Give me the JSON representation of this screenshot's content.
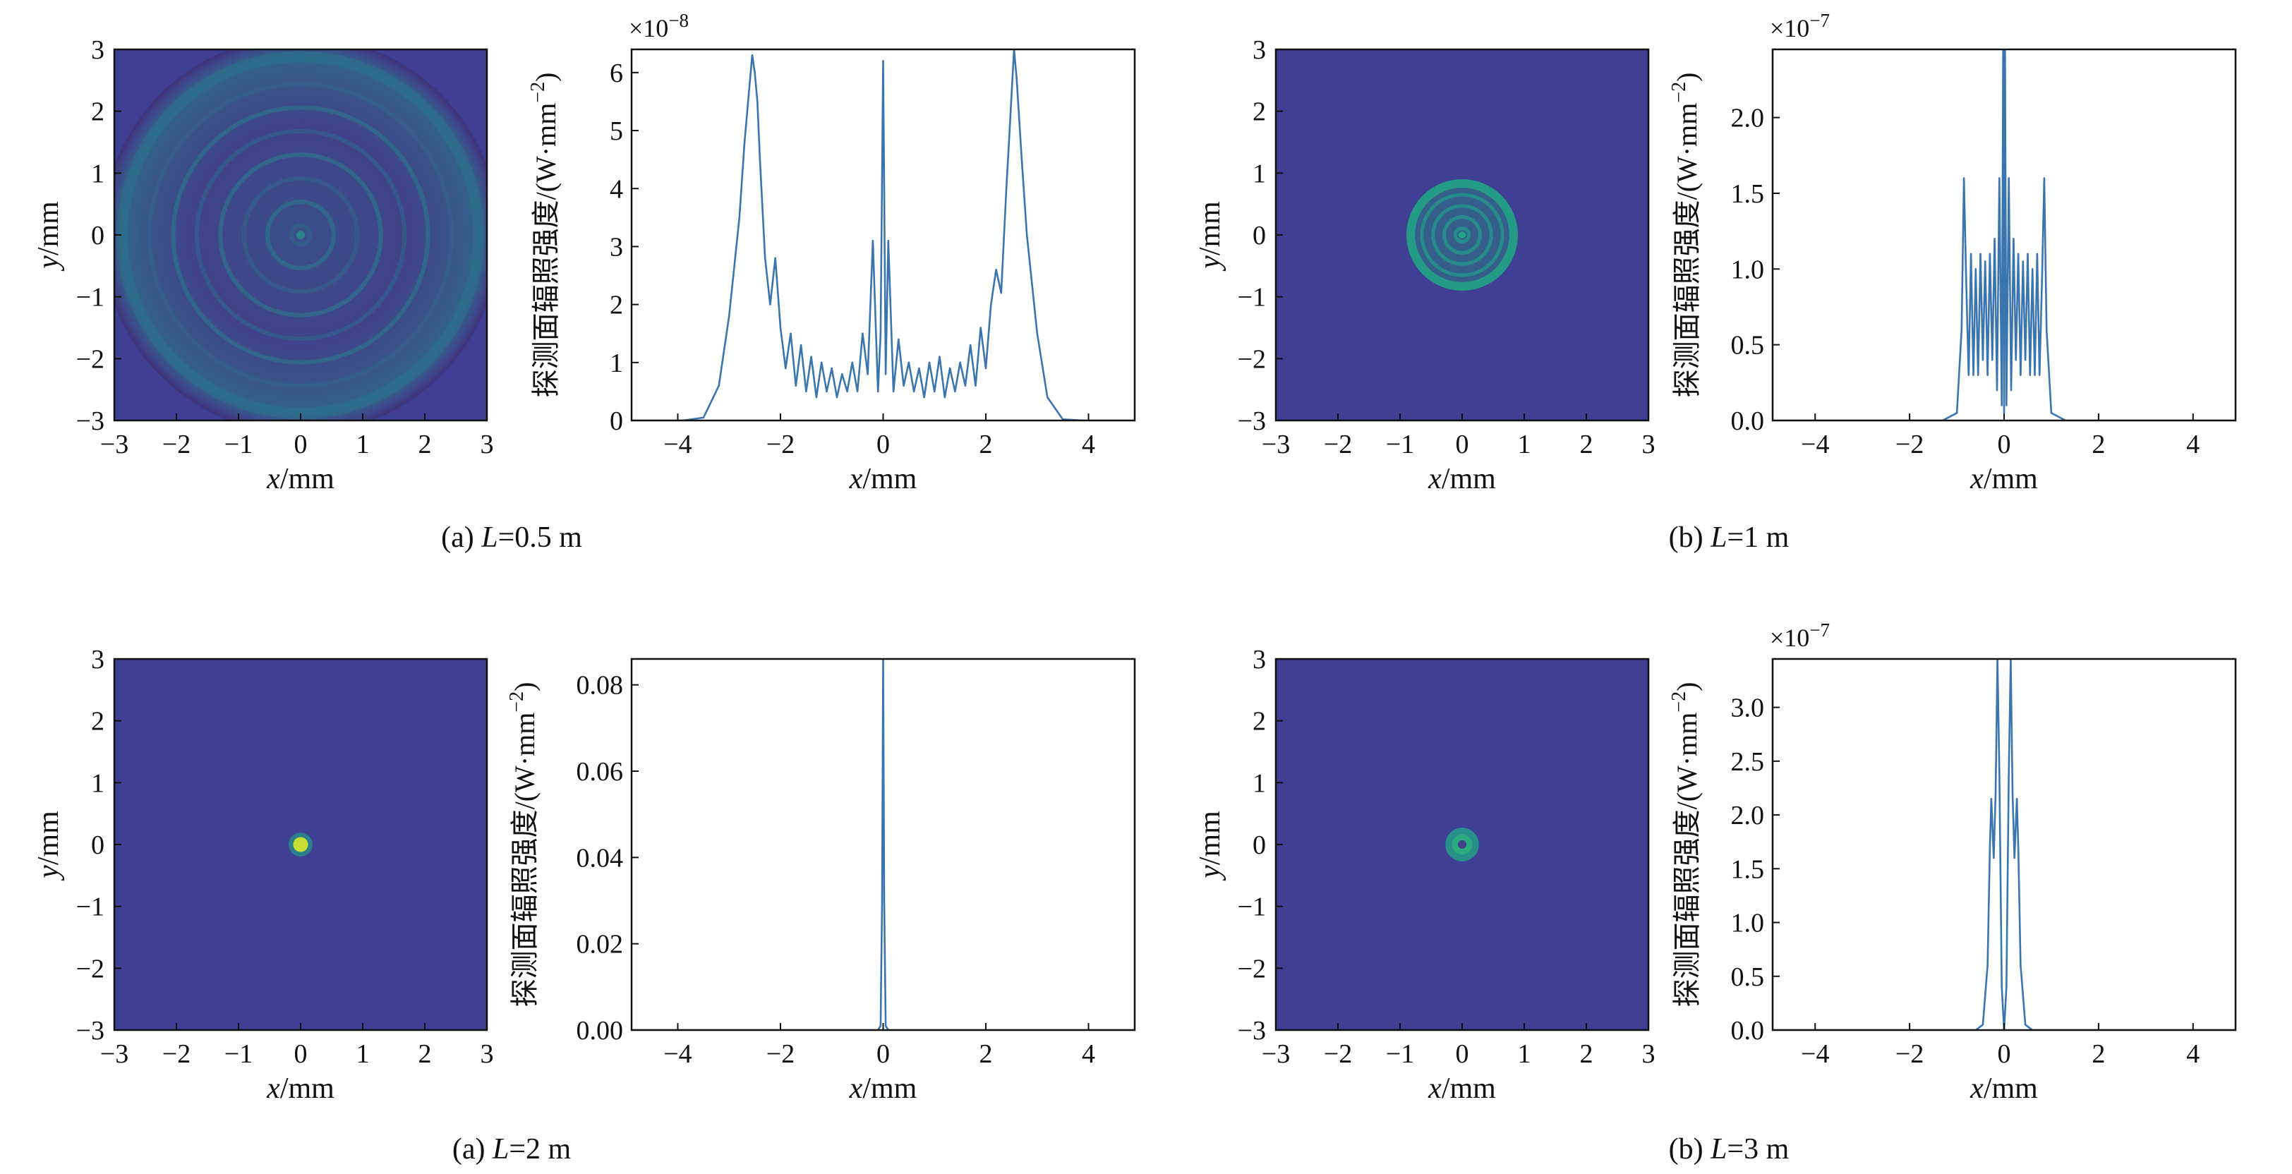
{
  "colors": {
    "line": "#3b75af",
    "map_background": "#3f3f93",
    "map_ring": "#3378b5",
    "map_peak": "#b8e05a",
    "frame": "#111111"
  },
  "chart_data": [
    {
      "type": "heatmap",
      "panel": "a-top-map",
      "xlabel_var": "x",
      "xlabel_unit": "/mm",
      "ylabel_var": "y",
      "ylabel_unit": "/mm",
      "xlim": [
        -3,
        3
      ],
      "ylim": [
        -3,
        3
      ],
      "xticks": [
        "−3",
        "−2",
        "−1",
        "0",
        "1",
        "2",
        "3"
      ],
      "yticks": [
        "−3",
        "−2",
        "−1",
        "0",
        "1",
        "2",
        "3"
      ],
      "colormap": "viridis",
      "pattern": {
        "kind": "rings",
        "outer_radius": 3.2,
        "ring_spacing": 0.38,
        "peak": 0.45
      },
      "caption": {
        "prefix": "(a) ",
        "var": "L",
        "value": "=0.5 m"
      }
    },
    {
      "type": "line",
      "panel": "a-top-profile",
      "ylabel": "探测面辐照强度/(W·mm",
      "ylabel_sup": "−2",
      "ylabel_close": ")",
      "xlabel_var": "x",
      "xlabel_unit": "/mm",
      "multiplier": "×10",
      "multiplier_exp": "−8",
      "xlim": [
        -4.9,
        4.9
      ],
      "ylim": [
        0,
        6.4
      ],
      "xticks": [
        "−4",
        "−2",
        "0",
        "2",
        "4"
      ],
      "yticks": [
        "0",
        "1",
        "2",
        "3",
        "4",
        "5",
        "6"
      ],
      "x": [
        -4.9,
        -4.5,
        -4.2,
        -3.9,
        -3.5,
        -3.2,
        -3.0,
        -2.8,
        -2.7,
        -2.6,
        -2.55,
        -2.5,
        -2.45,
        -2.4,
        -2.3,
        -2.2,
        -2.1,
        -2.0,
        -1.9,
        -1.8,
        -1.7,
        -1.6,
        -1.5,
        -1.4,
        -1.3,
        -1.2,
        -1.1,
        -1.0,
        -0.9,
        -0.8,
        -0.7,
        -0.6,
        -0.5,
        -0.4,
        -0.3,
        -0.2,
        -0.1,
        -0.05,
        0,
        0.05,
        0.1,
        0.2,
        0.3,
        0.4,
        0.5,
        0.6,
        0.7,
        0.8,
        0.9,
        1.0,
        1.1,
        1.2,
        1.3,
        1.4,
        1.5,
        1.6,
        1.7,
        1.8,
        1.9,
        2.0,
        2.1,
        2.2,
        2.3,
        2.4,
        2.45,
        2.5,
        2.55,
        2.6,
        2.7,
        2.8,
        3.0,
        3.2,
        3.5,
        3.9,
        4.2,
        4.5,
        4.9
      ],
      "values": [
        0,
        0,
        0,
        0,
        0.05,
        0.6,
        1.8,
        3.5,
        4.8,
        5.8,
        6.3,
        6.0,
        5.5,
        4.5,
        2.8,
        2.0,
        2.8,
        1.6,
        0.9,
        1.5,
        0.6,
        1.3,
        0.5,
        1.1,
        0.4,
        1.0,
        0.5,
        0.9,
        0.4,
        0.8,
        0.5,
        1.0,
        0.5,
        1.5,
        0.8,
        3.1,
        0.5,
        1.5,
        6.2,
        0.8,
        3.1,
        0.5,
        1.4,
        0.6,
        1.0,
        0.5,
        0.9,
        0.4,
        1.0,
        0.5,
        1.1,
        0.4,
        0.9,
        0.5,
        1.0,
        0.6,
        1.3,
        0.6,
        1.6,
        0.9,
        2.0,
        2.6,
        2.2,
        4.0,
        4.8,
        5.6,
        6.4,
        5.9,
        4.5,
        3.2,
        1.5,
        0.4,
        0.02,
        0,
        0,
        0,
        0
      ]
    },
    {
      "type": "heatmap",
      "panel": "b-top-map",
      "xlabel_var": "x",
      "xlabel_unit": "/mm",
      "ylabel_var": "y",
      "ylabel_unit": "/mm",
      "xlim": [
        -3,
        3
      ],
      "ylim": [
        -3,
        3
      ],
      "xticks": [
        "−3",
        "−2",
        "−1",
        "0",
        "1",
        "2",
        "3"
      ],
      "yticks": [
        "−3",
        "−2",
        "−1",
        "0",
        "1",
        "2",
        "3"
      ],
      "colormap": "viridis",
      "pattern": {
        "kind": "disk",
        "outer_radius": 0.9,
        "ring_spacing": 0.18,
        "peak": 0.6
      },
      "caption": {
        "prefix": "(b) ",
        "var": "L",
        "value": "=1 m"
      }
    },
    {
      "type": "line",
      "panel": "b-top-profile",
      "ylabel": "探测面辐照强度/(W·mm",
      "ylabel_sup": "−2",
      "ylabel_close": ")",
      "xlabel_var": "x",
      "xlabel_unit": "/mm",
      "multiplier": "×10",
      "multiplier_exp": "−7",
      "xlim": [
        -4.9,
        4.9
      ],
      "ylim": [
        0,
        2.45
      ],
      "xticks": [
        "−4",
        "−2",
        "0",
        "2",
        "4"
      ],
      "yticks": [
        "0.0",
        "0.5",
        "1.0",
        "1.5",
        "2.0"
      ],
      "x": [
        -4.9,
        -2.0,
        -1.3,
        -1.0,
        -0.9,
        -0.85,
        -0.8,
        -0.75,
        -0.7,
        -0.65,
        -0.6,
        -0.55,
        -0.5,
        -0.45,
        -0.4,
        -0.35,
        -0.3,
        -0.25,
        -0.2,
        -0.15,
        -0.1,
        -0.05,
        -0.02,
        0,
        0.02,
        0.05,
        0.1,
        0.15,
        0.2,
        0.25,
        0.3,
        0.35,
        0.4,
        0.45,
        0.5,
        0.55,
        0.6,
        0.65,
        0.7,
        0.75,
        0.8,
        0.85,
        0.9,
        1.0,
        1.3,
        2.0,
        4.9
      ],
      "values": [
        0,
        0,
        0,
        0.05,
        0.6,
        1.6,
        0.9,
        0.3,
        1.1,
        0.3,
        1.0,
        0.3,
        1.1,
        0.4,
        1.05,
        0.3,
        1.1,
        0.4,
        1.2,
        0.2,
        1.6,
        0.1,
        2.45,
        0.05,
        2.45,
        0.1,
        1.6,
        0.2,
        1.2,
        0.4,
        1.1,
        0.3,
        1.05,
        0.4,
        1.1,
        0.3,
        1.0,
        0.3,
        1.1,
        0.3,
        0.9,
        1.6,
        0.6,
        0.05,
        0,
        0,
        0
      ]
    },
    {
      "type": "heatmap",
      "panel": "a-bottom-map",
      "xlabel_var": "x",
      "xlabel_unit": "/mm",
      "ylabel_var": "y",
      "ylabel_unit": "/mm",
      "xlim": [
        -3,
        3
      ],
      "ylim": [
        -3,
        3
      ],
      "xticks": [
        "−3",
        "−2",
        "−1",
        "0",
        "1",
        "2",
        "3"
      ],
      "yticks": [
        "−3",
        "−2",
        "−1",
        "0",
        "1",
        "2",
        "3"
      ],
      "colormap": "viridis",
      "pattern": {
        "kind": "spot",
        "outer_radius": 0.12,
        "ring_spacing": 0,
        "peak": 1.0
      },
      "caption": {
        "prefix": "(a) ",
        "var": "L",
        "value": "=2 m"
      }
    },
    {
      "type": "line",
      "panel": "a-bottom-profile",
      "ylabel": "探测面辐照强度/(W·mm",
      "ylabel_sup": "−2",
      "ylabel_close": ")",
      "xlabel_var": "x",
      "xlabel_unit": "/mm",
      "multiplier": "",
      "multiplier_exp": "",
      "xlim": [
        -4.9,
        4.9
      ],
      "ylim": [
        0,
        0.086
      ],
      "xticks": [
        "−4",
        "−2",
        "0",
        "2",
        "4"
      ],
      "yticks": [
        "0.00",
        "0.02",
        "0.04",
        "0.06",
        "0.08"
      ],
      "x": [
        -4.9,
        -0.1,
        -0.05,
        -0.02,
        0,
        0.02,
        0.05,
        0.1,
        4.9
      ],
      "values": [
        0,
        0,
        0.001,
        0.03,
        0.086,
        0.03,
        0.001,
        0,
        0
      ]
    },
    {
      "type": "heatmap",
      "panel": "b-bottom-map",
      "xlabel_var": "x",
      "xlabel_unit": "/mm",
      "ylabel_var": "y",
      "ylabel_unit": "/mm",
      "xlim": [
        -3,
        3
      ],
      "ylim": [
        -3,
        3
      ],
      "xticks": [
        "−3",
        "−2",
        "−1",
        "0",
        "1",
        "2",
        "3"
      ],
      "yticks": [
        "−3",
        "−2",
        "−1",
        "0",
        "1",
        "2",
        "3"
      ],
      "colormap": "viridis",
      "pattern": {
        "kind": "annulus",
        "outer_radius": 0.27,
        "ring_spacing": 0,
        "peak": 0.6
      },
      "caption": {
        "prefix": "(b) ",
        "var": "L",
        "value": "=3 m"
      }
    },
    {
      "type": "line",
      "panel": "b-bottom-profile",
      "ylabel": "探测面辐照强度/(W·mm",
      "ylabel_sup": "−2",
      "ylabel_close": ")",
      "xlabel_var": "x",
      "xlabel_unit": "/mm",
      "multiplier": "×10",
      "multiplier_exp": "−7",
      "xlim": [
        -4.9,
        4.9
      ],
      "ylim": [
        0,
        3.45
      ],
      "xticks": [
        "−4",
        "−2",
        "0",
        "2",
        "4"
      ],
      "yticks": [
        "0.0",
        "0.5",
        "1.0",
        "1.5",
        "2.0",
        "2.5",
        "3.0"
      ],
      "x": [
        -4.9,
        -0.6,
        -0.45,
        -0.35,
        -0.3,
        -0.27,
        -0.22,
        -0.18,
        -0.14,
        -0.1,
        -0.05,
        0,
        0.05,
        0.1,
        0.14,
        0.18,
        0.22,
        0.27,
        0.3,
        0.35,
        0.45,
        0.6,
        4.9
      ],
      "values": [
        0,
        0,
        0.05,
        0.6,
        1.7,
        2.15,
        1.6,
        2.2,
        3.45,
        2.4,
        0.4,
        0,
        0.4,
        2.4,
        3.45,
        2.2,
        1.6,
        2.15,
        1.7,
        0.6,
        0.05,
        0,
        0
      ]
    }
  ]
}
